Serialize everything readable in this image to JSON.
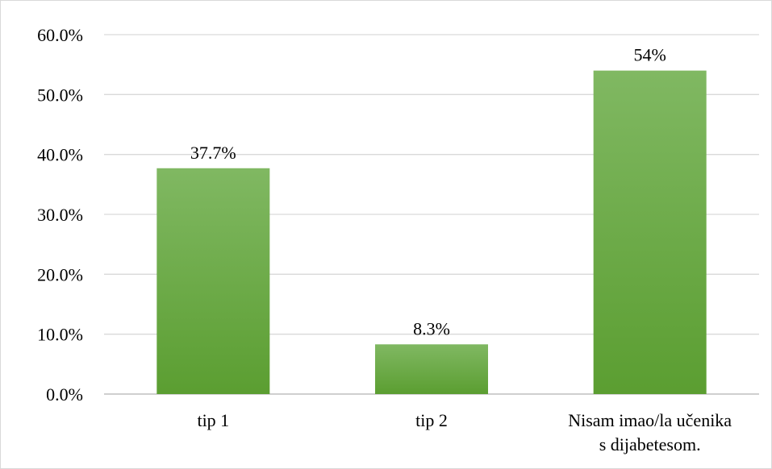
{
  "chart_data": {
    "type": "bar",
    "title": "",
    "xlabel": "",
    "ylabel": "",
    "categories": [
      [
        "tip 1"
      ],
      [
        "tip 2"
      ],
      [
        "Nisam imao/la učenika",
        "s dijabetesom."
      ]
    ],
    "values": [
      37.7,
      8.3,
      54
    ],
    "data_labels": [
      "37.7%",
      "8.3%",
      "54%"
    ],
    "ylim": [
      0,
      60
    ],
    "y_ticks": [
      0,
      10,
      20,
      30,
      40,
      50,
      60
    ],
    "y_tick_labels": [
      "0.0%",
      "10.0%",
      "20.0%",
      "30.0%",
      "40.0%",
      "50.0%",
      "60.0%"
    ],
    "grid": true,
    "legend": "none",
    "colors": {
      "bar_top": "#80b862",
      "bar_bottom": "#5b9e31",
      "grid": "#d9d9d9",
      "axis": "#bfbfbf"
    }
  }
}
